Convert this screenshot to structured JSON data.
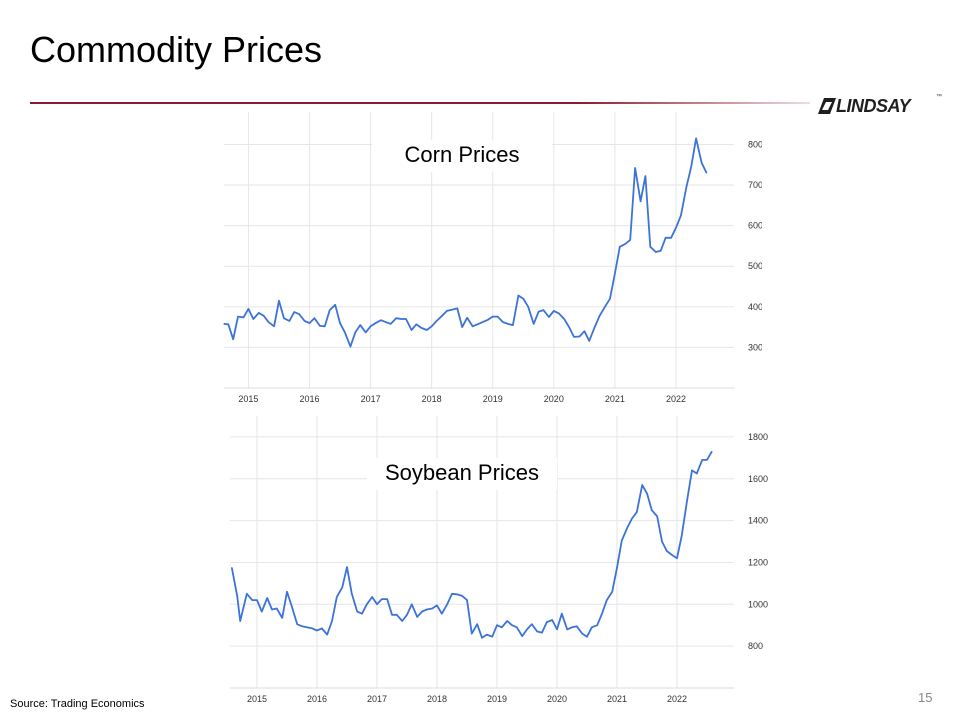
{
  "slide": {
    "title": "Commodity Prices",
    "page_number": "15",
    "source": "Source: Trading Economics"
  },
  "logo": {
    "text": "LINDSAY",
    "mark": "™"
  },
  "colors": {
    "line": "#3b73d9",
    "accent_rule": "#8b1a2e",
    "grid": "#e6e6e6"
  },
  "chart_data": [
    {
      "type": "line",
      "title": "Corn Prices",
      "xlabel": "",
      "ylabel": "",
      "xlim": [
        2014.6,
        2022.95
      ],
      "ylim": [
        200,
        880
      ],
      "x_ticks": [
        2015,
        2016,
        2017,
        2018,
        2019,
        2020,
        2021,
        2022
      ],
      "y_ticks": [
        300,
        400,
        500,
        600,
        700,
        800
      ],
      "grid": true,
      "series": [
        {
          "values": [
            [
              2014.6,
              358
            ],
            [
              2014.67,
              357
            ],
            [
              2014.75,
              320
            ],
            [
              2014.83,
              376
            ],
            [
              2014.92,
              374
            ],
            [
              2015.0,
              395
            ],
            [
              2015.08,
              370
            ],
            [
              2015.17,
              385
            ],
            [
              2015.25,
              378
            ],
            [
              2015.33,
              362
            ],
            [
              2015.42,
              352
            ],
            [
              2015.5,
              415
            ],
            [
              2015.58,
              372
            ],
            [
              2015.67,
              365
            ],
            [
              2015.75,
              387
            ],
            [
              2015.83,
              382
            ],
            [
              2015.92,
              365
            ],
            [
              2016.0,
              360
            ],
            [
              2016.08,
              372
            ],
            [
              2016.17,
              353
            ],
            [
              2016.25,
              352
            ],
            [
              2016.33,
              392
            ],
            [
              2016.42,
              405
            ],
            [
              2016.5,
              360
            ],
            [
              2016.58,
              337
            ],
            [
              2016.67,
              302
            ],
            [
              2016.75,
              337
            ],
            [
              2016.83,
              355
            ],
            [
              2016.92,
              337
            ],
            [
              2017.0,
              352
            ],
            [
              2017.08,
              360
            ],
            [
              2017.17,
              367
            ],
            [
              2017.25,
              362
            ],
            [
              2017.33,
              358
            ],
            [
              2017.42,
              372
            ],
            [
              2017.5,
              370
            ],
            [
              2017.58,
              370
            ],
            [
              2017.67,
              343
            ],
            [
              2017.75,
              357
            ],
            [
              2017.83,
              348
            ],
            [
              2017.92,
              343
            ],
            [
              2018.0,
              352
            ],
            [
              2018.08,
              365
            ],
            [
              2018.17,
              378
            ],
            [
              2018.25,
              390
            ],
            [
              2018.33,
              393
            ],
            [
              2018.42,
              396
            ],
            [
              2018.5,
              350
            ],
            [
              2018.58,
              373
            ],
            [
              2018.67,
              352
            ],
            [
              2018.75,
              357
            ],
            [
              2018.83,
              362
            ],
            [
              2018.92,
              368
            ],
            [
              2019.0,
              376
            ],
            [
              2019.08,
              376
            ],
            [
              2019.17,
              362
            ],
            [
              2019.25,
              358
            ],
            [
              2019.33,
              355
            ],
            [
              2019.42,
              428
            ],
            [
              2019.5,
              420
            ],
            [
              2019.58,
              400
            ],
            [
              2019.67,
              358
            ],
            [
              2019.75,
              388
            ],
            [
              2019.83,
              392
            ],
            [
              2019.92,
              375
            ],
            [
              2020.0,
              390
            ],
            [
              2020.08,
              384
            ],
            [
              2020.17,
              370
            ],
            [
              2020.25,
              350
            ],
            [
              2020.33,
              326
            ],
            [
              2020.42,
              327
            ],
            [
              2020.5,
              340
            ],
            [
              2020.58,
              316
            ],
            [
              2020.67,
              350
            ],
            [
              2020.75,
              378
            ],
            [
              2020.83,
              398
            ],
            [
              2020.92,
              420
            ],
            [
              2021.0,
              482
            ],
            [
              2021.08,
              548
            ],
            [
              2021.17,
              555
            ],
            [
              2021.25,
              565
            ],
            [
              2021.33,
              742
            ],
            [
              2021.42,
              660
            ],
            [
              2021.5,
              722
            ],
            [
              2021.58,
              548
            ],
            [
              2021.67,
              535
            ],
            [
              2021.75,
              538
            ],
            [
              2021.83,
              570
            ],
            [
              2021.92,
              570
            ],
            [
              2022.0,
              595
            ],
            [
              2022.08,
              625
            ],
            [
              2022.17,
              695
            ],
            [
              2022.25,
              745
            ],
            [
              2022.33,
              815
            ],
            [
              2022.42,
              755
            ],
            [
              2022.5,
              730
            ]
          ]
        }
      ]
    },
    {
      "type": "line",
      "title": "Soybean Prices",
      "xlabel": "",
      "ylabel": "",
      "xlim": [
        2014.55,
        2022.95
      ],
      "ylim": [
        600,
        1900
      ],
      "x_ticks": [
        2015,
        2016,
        2017,
        2018,
        2019,
        2020,
        2021,
        2022
      ],
      "y_ticks": [
        800,
        1000,
        1200,
        1400,
        1600,
        1800
      ],
      "grid": true,
      "series": [
        {
          "values": [
            [
              2014.58,
              1175
            ],
            [
              2014.67,
              1040
            ],
            [
              2014.72,
              920
            ],
            [
              2014.83,
              1050
            ],
            [
              2014.92,
              1020
            ],
            [
              2015.0,
              1020
            ],
            [
              2015.08,
              965
            ],
            [
              2015.17,
              1030
            ],
            [
              2015.25,
              975
            ],
            [
              2015.33,
              980
            ],
            [
              2015.42,
              935
            ],
            [
              2015.5,
              1060
            ],
            [
              2015.58,
              990
            ],
            [
              2015.67,
              905
            ],
            [
              2015.75,
              895
            ],
            [
              2015.83,
              890
            ],
            [
              2015.92,
              885
            ],
            [
              2016.0,
              875
            ],
            [
              2016.08,
              885
            ],
            [
              2016.17,
              855
            ],
            [
              2016.25,
              920
            ],
            [
              2016.33,
              1035
            ],
            [
              2016.42,
              1080
            ],
            [
              2016.5,
              1178
            ],
            [
              2016.58,
              1050
            ],
            [
              2016.67,
              965
            ],
            [
              2016.75,
              955
            ],
            [
              2016.83,
              1000
            ],
            [
              2016.92,
              1035
            ],
            [
              2017.0,
              1000
            ],
            [
              2017.08,
              1025
            ],
            [
              2017.17,
              1025
            ],
            [
              2017.25,
              950
            ],
            [
              2017.33,
              950
            ],
            [
              2017.42,
              920
            ],
            [
              2017.5,
              950
            ],
            [
              2017.58,
              1000
            ],
            [
              2017.67,
              940
            ],
            [
              2017.75,
              965
            ],
            [
              2017.83,
              975
            ],
            [
              2017.92,
              980
            ],
            [
              2018.0,
              995
            ],
            [
              2018.08,
              955
            ],
            [
              2018.17,
              1000
            ],
            [
              2018.25,
              1050
            ],
            [
              2018.33,
              1048
            ],
            [
              2018.42,
              1040
            ],
            [
              2018.5,
              1020
            ],
            [
              2018.58,
              860
            ],
            [
              2018.67,
              905
            ],
            [
              2018.75,
              840
            ],
            [
              2018.83,
              855
            ],
            [
              2018.92,
              845
            ],
            [
              2019.0,
              900
            ],
            [
              2019.08,
              890
            ],
            [
              2019.17,
              920
            ],
            [
              2019.25,
              900
            ],
            [
              2019.33,
              890
            ],
            [
              2019.42,
              848
            ],
            [
              2019.5,
              880
            ],
            [
              2019.58,
              905
            ],
            [
              2019.67,
              870
            ],
            [
              2019.75,
              865
            ],
            [
              2019.83,
              915
            ],
            [
              2019.92,
              925
            ],
            [
              2020.0,
              880
            ],
            [
              2020.08,
              955
            ],
            [
              2020.17,
              880
            ],
            [
              2020.25,
              890
            ],
            [
              2020.33,
              895
            ],
            [
              2020.42,
              860
            ],
            [
              2020.5,
              845
            ],
            [
              2020.58,
              890
            ],
            [
              2020.67,
              900
            ],
            [
              2020.75,
              955
            ],
            [
              2020.83,
              1020
            ],
            [
              2020.92,
              1060
            ],
            [
              2021.0,
              1175
            ],
            [
              2021.08,
              1305
            ],
            [
              2021.17,
              1365
            ],
            [
              2021.25,
              1410
            ],
            [
              2021.33,
              1440
            ],
            [
              2021.42,
              1570
            ],
            [
              2021.5,
              1530
            ],
            [
              2021.58,
              1450
            ],
            [
              2021.67,
              1420
            ],
            [
              2021.75,
              1300
            ],
            [
              2021.83,
              1255
            ],
            [
              2021.92,
              1235
            ],
            [
              2022.0,
              1220
            ],
            [
              2022.08,
              1330
            ],
            [
              2022.17,
              1500
            ],
            [
              2022.25,
              1640
            ],
            [
              2022.33,
              1625
            ],
            [
              2022.42,
              1690
            ],
            [
              2022.5,
              1690
            ],
            [
              2022.58,
              1730
            ]
          ]
        }
      ]
    }
  ]
}
